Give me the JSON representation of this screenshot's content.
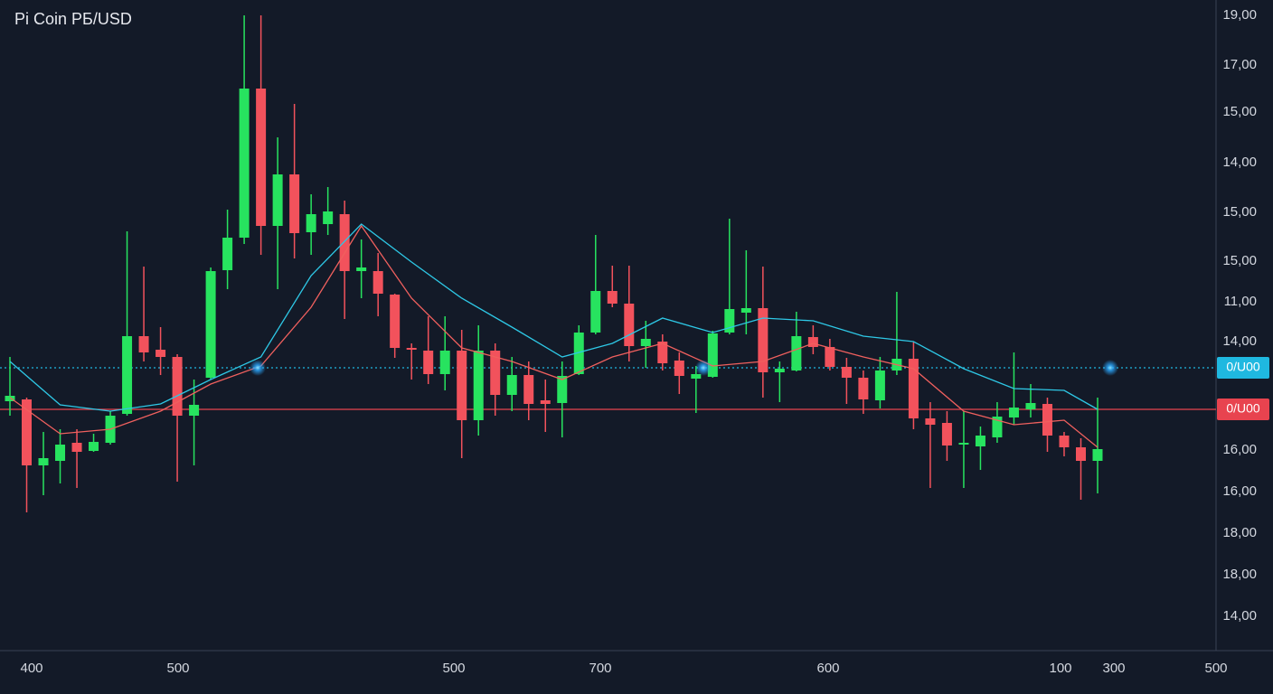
{
  "chart_data": {
    "type": "candlestick",
    "title": "Pi Coin PБ/USD",
    "ylim": [
      0,
      720
    ],
    "xlim": [
      0,
      65
    ],
    "up_color": "#27e35f",
    "down_color": "#f2525c",
    "open": [
      276,
      278,
      205,
      210,
      230,
      221,
      230,
      262,
      348,
      333,
      325,
      260,
      302,
      421,
      457,
      622,
      470,
      527,
      463,
      472,
      483,
      420,
      420,
      394,
      335,
      332,
      306,
      332,
      255,
      332,
      283,
      305,
      277,
      274,
      306,
      352,
      398,
      384,
      337,
      342,
      321,
      301,
      303,
      352,
      374,
      379,
      308,
      310,
      347,
      336,
      314,
      302,
      277,
      310,
      323,
      257,
      252,
      228,
      226,
      236,
      258,
      267,
      273,
      238,
      225,
      210
    ],
    "high": [
      325,
      280,
      242,
      245,
      245,
      240,
      265,
      464,
      425,
      358,
      328,
      300,
      424,
      488,
      703,
      703,
      568,
      605,
      505,
      513,
      498,
      455,
      440,
      395,
      340,
      370,
      370,
      355,
      360,
      340,
      325,
      320,
      300,
      320,
      360,
      460,
      426,
      426,
      365,
      350,
      330,
      315,
      354,
      478,
      443,
      425,
      320,
      375,
      360,
      345,
      324,
      310,
      325,
      397,
      342,
      275,
      265,
      265,
      248,
      275,
      330,
      295,
      280,
      242,
      235,
      280
    ],
    "low": [
      260,
      153,
      172,
      185,
      180,
      220,
      228,
      260,
      320,
      305,
      187,
      205,
      300,
      400,
      450,
      438,
      400,
      434,
      438,
      460,
      367,
      390,
      370,
      324,
      300,
      295,
      288,
      213,
      238,
      260,
      265,
      255,
      242,
      236,
      305,
      350,
      380,
      320,
      313,
      310,
      284,
      263,
      302,
      350,
      350,
      280,
      275,
      309,
      328,
      310,
      273,
      262,
      268,
      305,
      245,
      180,
      210,
      180,
      200,
      230,
      250,
      258,
      220,
      215,
      167,
      174
    ],
    "close": [
      282,
      205,
      213,
      228,
      220,
      231,
      260,
      348,
      330,
      325,
      260,
      272,
      420,
      457,
      622,
      470,
      527,
      462,
      483,
      486,
      420,
      424,
      395,
      335,
      333,
      306,
      332,
      255,
      332,
      283,
      305,
      273,
      273,
      304,
      352,
      398,
      384,
      337,
      345,
      318,
      304,
      306,
      351,
      378,
      379,
      308,
      312,
      348,
      336,
      314,
      302,
      278,
      310,
      323,
      257,
      250,
      227,
      230,
      238,
      259,
      269,
      274,
      238,
      225,
      210,
      223
    ],
    "moving_averages": [
      {
        "color": "#2ec8e6",
        "x": [
          0,
          3,
          6,
          9,
          12,
          15,
          18,
          21,
          24,
          27,
          30,
          33,
          36,
          39,
          42,
          45,
          48,
          51,
          54,
          57,
          60,
          63,
          65
        ],
        "values": [
          320,
          272,
          265,
          273,
          300,
          325,
          415,
          472,
          430,
          390,
          358,
          325,
          340,
          368,
          352,
          368,
          365,
          348,
          342,
          312,
          290,
          288,
          267
        ]
      },
      {
        "color": "#f0605e",
        "x": [
          0,
          3,
          6,
          9,
          12,
          15,
          18,
          21,
          24,
          27,
          30,
          33,
          36,
          39,
          42,
          45,
          48,
          51,
          54,
          57,
          60,
          63,
          65
        ],
        "values": [
          280,
          240,
          245,
          265,
          295,
          315,
          380,
          470,
          390,
          335,
          320,
          300,
          325,
          340,
          315,
          320,
          340,
          325,
          312,
          265,
          250,
          255,
          225
        ]
      }
    ],
    "price_lines": [
      {
        "value": 313,
        "label": "0/U00",
        "color": "#1fb8e0",
        "style": "dotted"
      },
      {
        "value": 267,
        "label": "0/U00",
        "color": "#e8434f",
        "style": "solid"
      }
    ],
    "y_axis_labels": [
      "19,00",
      "17,00",
      "15,00",
      "14,00",
      "15,00",
      "15,00",
      "11,00",
      "14,00",
      "16,00",
      "16,00",
      "18,00",
      "18,00",
      "14,00"
    ],
    "x_axis_labels": [
      "400",
      "500",
      "500",
      "700",
      "600",
      "100",
      "300",
      "500"
    ]
  }
}
